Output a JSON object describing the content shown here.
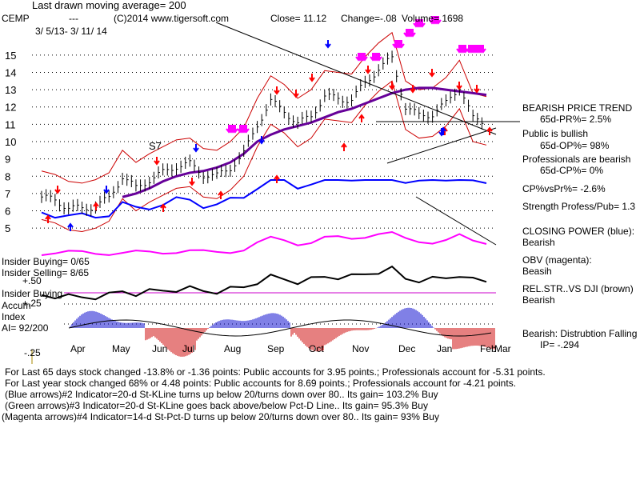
{
  "header": {
    "ma_note": "Last drawn moving average= 200",
    "ticker": "CEMP",
    "dashes": "---",
    "copyright": "(C)2014 www.tigersoft.com",
    "close": "Close=  11.12",
    "change": "Change=-.08",
    "volume": "Volume=  1698",
    "date_range": "3/ 5/13-  3/ 11/ 14"
  },
  "right_panel": {
    "bearish_trend": "BEARISH PRICE TREND",
    "pr": "65d-PR%= 2.5%",
    "public": "Public is bullish",
    "op": "65d-OP%= 98%",
    "professionals": "Professionals are bearish",
    "cp": "65d-CP%= 0%",
    "cpvspr": "CP%vsPr%= -2.6%",
    "strength": "Strength Profess/Pub= 1.3",
    "closing_power_title": "CLOSING POWER (blue):",
    "closing_power_value": "Bearish",
    "obv_title": "OBV (magenta):",
    "obv_value": "Beasih",
    "relstr_title": "REL.STR..VS DJI (brown)",
    "relstr_value": "Bearish",
    "ip_title": "Bearish:  Distrubtion Falling",
    "ip_value": "IP= -.294"
  },
  "left_panel": {
    "insider_buying": "Insider Buying= 0/65",
    "insider_selling": "Insider Selling= 8/65",
    "plus50": "+.50",
    "insider_buying2": "Insider Buying",
    "accum": "Accum",
    "plus25": "+.25",
    "index": "Index",
    "ai": "AI= 92/200",
    "minus25": "-.25"
  },
  "signal_label": "S7",
  "footer": {
    "line1": "For Last 65 days stock changed  -13.8% or  -1.36 points:  Public accounts for  3.95 points.;  Professionals account for -5.31 points.",
    "line2": "For Last year stock changed  68% or  4.48 points:  Public accounts for  8.69 points.;  Professionals account for -4.21 points.",
    "line3": "(Blue arrows)#2 Indicator=20-d St-KLine turns up below 20/turns down over 80.. Its gain= 103.2% Buy",
    "line4": "(Green arrows)#3 Indicator=20-d St-KLine goes back above/below Pct-D Line.. Its gain= 95.3% Buy",
    "line5": "(Magenta arrows)#4 Indicator=14-d St-Pct-D turns up below 20/turns down over 80.. Its gain= 93% Buy"
  },
  "chart_data": {
    "type": "line",
    "ylim": [
      4.5,
      15.5
    ],
    "y_ticks": [
      "15",
      "14",
      "13",
      "12",
      "11",
      "10",
      "9",
      "8",
      "7",
      "6",
      "5"
    ],
    "x_ticks": [
      "Apr",
      "May",
      "Jun",
      "Jul",
      "Aug",
      "Sep",
      "Oct",
      "Nov",
      "Dec",
      "Jan",
      "Feb",
      "Mar"
    ],
    "colors": {
      "price": "#000000",
      "ma_fast": "#cc0000",
      "ma_200": "#660099",
      "closing_power": "#0000ff",
      "obv": "#ff00ff",
      "rel_str": "#000000",
      "accum_pos": "#0000cc",
      "accum_neg": "#cc0000",
      "arrow_red": "#ff0000",
      "arrow_blue": "#0000ff",
      "arrow_magenta": "#ff00ff",
      "ref_line": "#cc00cc"
    },
    "series": [
      {
        "name": "Price",
        "values": [
          6.8,
          6.6,
          6.2,
          6.1,
          6.3,
          6.7,
          8.0,
          7.3,
          7.8,
          8.2,
          8.6,
          8.7,
          8.1,
          8.0,
          8.5,
          9.3,
          11.0,
          12.3,
          11.8,
          11.0,
          11.5,
          12.6,
          12.5,
          12.4,
          13.4,
          14.2,
          14.8,
          12.0,
          11.5,
          11.6,
          12.2,
          13.2,
          11.3,
          11.1
        ]
      },
      {
        "name": "200-day MA",
        "values": [
          null,
          null,
          null,
          null,
          null,
          null,
          6.8,
          7.0,
          7.3,
          7.7,
          8.0,
          8.2,
          8.3,
          8.5,
          8.8,
          9.3,
          10.0,
          10.4,
          10.7,
          10.9,
          11.1,
          11.4,
          11.7,
          11.9,
          12.2,
          12.5,
          12.8,
          13.0,
          13.1,
          13.1,
          13.0,
          12.9,
          12.8,
          12.7
        ]
      }
    ],
    "x": [
      "Mar",
      "",
      "Apr",
      "",
      "May",
      "",
      "",
      "Jun",
      "",
      "Jul",
      "",
      "Aug",
      "",
      "",
      "Sep",
      "",
      "Oct",
      "",
      "",
      "Nov",
      "",
      "Dec",
      "",
      "",
      "Jan",
      "",
      "",
      "Feb",
      "",
      "",
      "",
      "Mar",
      "",
      ""
    ]
  }
}
